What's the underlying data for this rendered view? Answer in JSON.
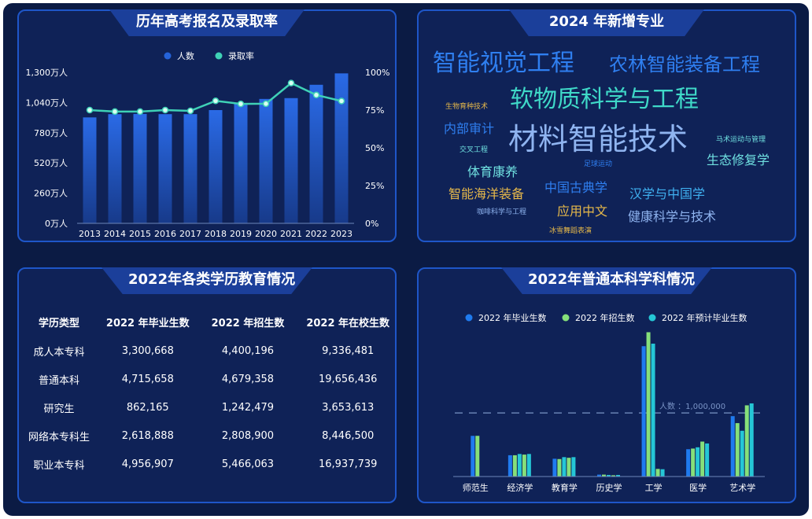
{
  "panels": {
    "enrollment_title": "历年高考报名及录取率",
    "majors_title": "2024 年新增专业",
    "education_title": "2022年各类学历教育情况",
    "disciplines_title": "2022年普通本科学科情况"
  },
  "enrollment_chart": {
    "legend": {
      "bar": "人数",
      "line": "录取率"
    },
    "y_left_ticks": [
      "0万人",
      "260万人",
      "520万人",
      "780万人",
      "1,040万人",
      "1,300万人"
    ],
    "y_right_ticks": [
      "0%",
      "25%",
      "50%",
      "75%",
      "100%"
    ]
  },
  "majors": {
    "words": [
      {
        "text": "智能视觉工程",
        "color": "#2f7ff0"
      },
      {
        "text": "农林智能装备工程",
        "color": "#2f7ff0"
      },
      {
        "text": "软物质科学与工程",
        "color": "#3fd9c8"
      },
      {
        "text": "生物育种技术",
        "color": "#e6b84a"
      },
      {
        "text": "内部审计",
        "color": "#2f7ff0"
      },
      {
        "text": "材料智能技术",
        "color": "#8fb4f0"
      },
      {
        "text": "马术运动与管理",
        "color": "#6fe0e0"
      },
      {
        "text": "交叉工程",
        "color": "#6fe0e0"
      },
      {
        "text": "生态修复学",
        "color": "#6fe0e0"
      },
      {
        "text": "足球运动",
        "color": "#2f7ff0"
      },
      {
        "text": "体育康养",
        "color": "#6fe0e0"
      },
      {
        "text": "中国古典学",
        "color": "#2f7ff0"
      },
      {
        "text": "汉学与中国学",
        "color": "#3fb0f0"
      },
      {
        "text": "智能海洋装备",
        "color": "#e6b84a"
      },
      {
        "text": "咖啡科学与工程",
        "color": "#8fb4f0"
      },
      {
        "text": "应用中文",
        "color": "#e6b84a"
      },
      {
        "text": "健康科学与技术",
        "color": "#8fb4f0"
      },
      {
        "text": "冰雪舞蹈表演",
        "color": "#e6b84a"
      }
    ]
  },
  "education_table": {
    "headers": [
      "学历类型",
      "2022 年毕业生数",
      "2022 年招生数",
      "2022 年在校生数"
    ],
    "rows": [
      [
        "成人本专科",
        "3,300,668",
        "4,400,196",
        "9,336,481"
      ],
      [
        "普通本科",
        "4,715,658",
        "4,679,358",
        "19,656,436"
      ],
      [
        "研究生",
        "862,165",
        "1,242,479",
        "3,653,613"
      ],
      [
        "网络本专科生",
        "2,618,888",
        "2,808,900",
        "8,446,500"
      ],
      [
        "职业本专科",
        "4,956,907",
        "5,466,063",
        "16,937,739"
      ]
    ]
  },
  "discipline_chart": {
    "reference_label": "人数 ：1,000,000"
  },
  "colors": {
    "panel_border": "#1e56c8",
    "bar_blue": "#2563d9",
    "line_teal": "#3fd1b6",
    "grad_blue": "#1f7bef",
    "enroll_green": "#86e07a",
    "projected_cyan": "#25c7d6"
  },
  "chart_data": [
    {
      "type": "bar",
      "categories": [
        "2013",
        "2014",
        "2015",
        "2016",
        "2017",
        "2018",
        "2019",
        "2020",
        "2021",
        "2022",
        "2023"
      ],
      "series": [
        {
          "name": "人数",
          "type": "bar",
          "values": [
            912,
            940,
            942,
            940,
            940,
            975,
            1031,
            1071,
            1078,
            1193,
            1291
          ]
        },
        {
          "name": "录取率",
          "type": "line",
          "axis": "right",
          "values": [
            75,
            74,
            74,
            75,
            74.5,
            81.1,
            79.1,
            79.2,
            92.9,
            85,
            81
          ]
        }
      ],
      "xlabel": "",
      "ylabel": "",
      "ylim": [
        0,
        1300
      ],
      "y2lim": [
        0,
        100
      ],
      "legend": "top-center",
      "grid": false
    },
    {
      "type": "bar",
      "categories": [
        "师范生",
        "经济学",
        "教育学",
        "历史学",
        "工学",
        "医学",
        "艺术学"
      ],
      "series": [
        {
          "name": "2022 年毕业生数",
          "values": [
            640000,
            335000,
            280000,
            30000,
            2050000,
            430000,
            950000
          ]
        },
        {
          "name": "2022 年招生数",
          "values": [
            640000,
            335000,
            275000,
            30000,
            2270000,
            440000,
            840000
          ]
        },
        {
          "name": "2022 年预计毕业生数",
          "values": [
            0,
            355000,
            305000,
            25000,
            2090000,
            460000,
            720000
          ]
        }
      ],
      "extra_bars_by_category": {
        "经济学": [
          345000,
          355000
        ],
        "教育学": [
          295000,
          305000
        ],
        "历史学": [
          20000,
          25000
        ],
        "工学": [
          120000,
          115000
        ],
        "医学": [
          550000,
          520000
        ],
        "艺术学": [
          1120000,
          1150000
        ]
      },
      "reference_line": 1000000,
      "xlabel": "",
      "ylabel": "",
      "legend": "top-center",
      "grid": false
    }
  ]
}
